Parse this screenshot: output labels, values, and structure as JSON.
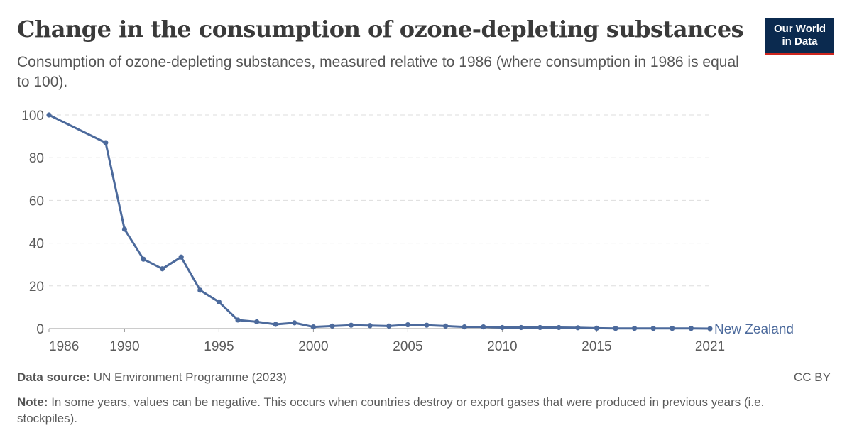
{
  "header": {
    "title": "Change in the consumption of ozone-depleting substances",
    "subtitle": "Consumption of ozone-depleting substances, measured relative to 1986 (where consumption in 1986 is equal to 100).",
    "logo_line1": "Our World",
    "logo_line2": "in Data"
  },
  "colors": {
    "series": "#4c6a9c",
    "grid": "#dddddd",
    "axis": "#999999",
    "logo_bg": "#0b2a4f",
    "logo_accent": "#ce261e"
  },
  "chart_data": {
    "type": "line",
    "title": "Change in the consumption of ozone-depleting substances",
    "xlabel": "",
    "ylabel": "",
    "xlim": [
      1986,
      2021
    ],
    "ylim": [
      0,
      100
    ],
    "x_ticks": [
      1986,
      1990,
      1995,
      2000,
      2005,
      2010,
      2015,
      2021
    ],
    "y_ticks": [
      0,
      20,
      40,
      60,
      80,
      100
    ],
    "grid": "horizontal dashed",
    "series": [
      {
        "name": "New Zealand",
        "x": [
          1986,
          1989,
          1990,
          1991,
          1992,
          1993,
          1994,
          1995,
          1996,
          1997,
          1998,
          1999,
          2000,
          2001,
          2002,
          2003,
          2004,
          2005,
          2006,
          2007,
          2008,
          2009,
          2010,
          2011,
          2012,
          2013,
          2014,
          2015,
          2016,
          2017,
          2018,
          2019,
          2020,
          2021
        ],
        "y": [
          100,
          87,
          46.5,
          32.5,
          28,
          33.5,
          18,
          12.5,
          4,
          3.2,
          2,
          2.7,
          0.8,
          1.2,
          1.6,
          1.4,
          1.2,
          1.8,
          1.6,
          1.2,
          0.8,
          0.8,
          0.5,
          0.5,
          0.5,
          0.5,
          0.4,
          0.2,
          0.1,
          0.1,
          0.1,
          0.1,
          0.1,
          0
        ]
      }
    ]
  },
  "footer": {
    "source_label": "Data source:",
    "source_text": "UN Environment Programme (2023)",
    "license": "CC BY",
    "note_label": "Note:",
    "note_text": "In some years, values can be negative. This occurs when countries destroy or export gases that were produced in previous years (i.e. stockpiles)."
  }
}
